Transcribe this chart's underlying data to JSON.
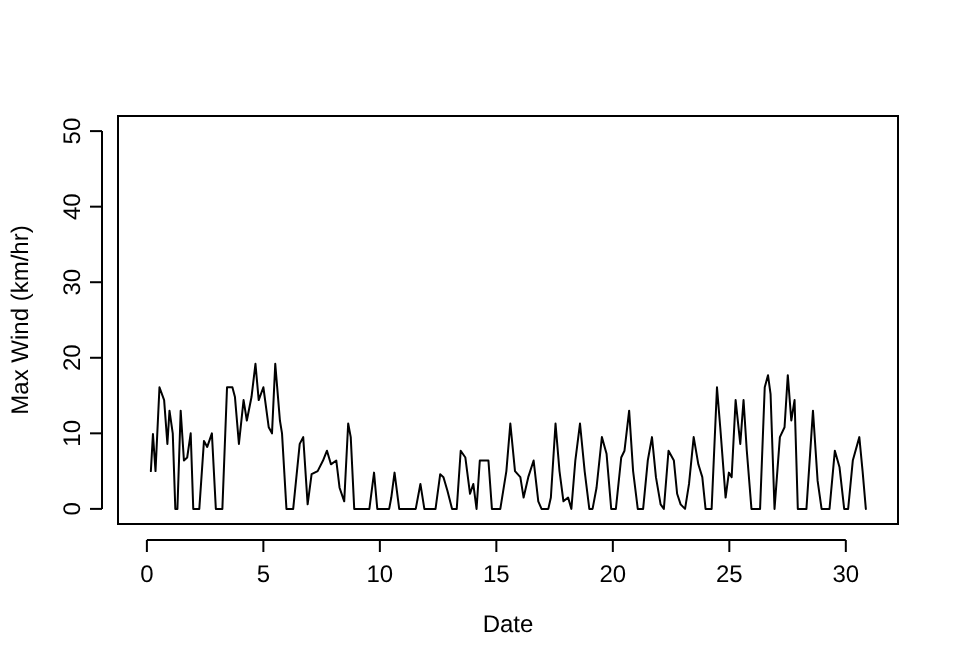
{
  "chart_data": {
    "type": "line",
    "xlabel": "Date",
    "ylabel": "Max Wind (km/hr)",
    "xlim": [
      -1.24,
      32.24
    ],
    "ylim": [
      -2,
      52
    ],
    "xticks": [
      0,
      5,
      10,
      15,
      20,
      25,
      30
    ],
    "yticks": [
      0,
      10,
      20,
      30,
      40,
      50
    ],
    "grid": false,
    "marker": "none",
    "line_style": "solid",
    "series": [
      {
        "color": "#000000",
        "x": [
          0.17,
          0.26,
          0.37,
          0.54,
          0.74,
          0.88,
          0.97,
          1.11,
          1.22,
          1.31,
          1.45,
          1.59,
          1.73,
          1.88,
          1.99,
          2.25,
          2.45,
          2.59,
          2.79,
          2.96,
          3.24,
          3.44,
          3.67,
          3.78,
          3.95,
          4.15,
          4.29,
          4.49,
          4.66,
          4.8,
          5.0,
          5.23,
          5.37,
          5.51,
          5.71,
          5.8,
          5.99,
          6.28,
          6.56,
          6.71,
          6.9,
          7.07,
          7.33,
          7.56,
          7.73,
          7.9,
          8.13,
          8.27,
          8.47,
          8.64,
          8.75,
          8.9,
          9.55,
          9.75,
          9.89,
          10.4,
          10.49,
          10.63,
          10.83,
          11.54,
          11.74,
          11.91,
          12.39,
          12.59,
          12.73,
          12.9,
          13.1,
          13.3,
          13.47,
          13.67,
          13.87,
          14.01,
          14.15,
          14.29,
          14.66,
          14.81,
          15.17,
          15.43,
          15.6,
          15.8,
          16.03,
          16.17,
          16.37,
          16.6,
          16.8,
          16.94,
          17.23,
          17.34,
          17.54,
          17.71,
          17.88,
          18.08,
          18.22,
          18.39,
          18.59,
          18.79,
          18.99,
          19.13,
          19.3,
          19.53,
          19.73,
          19.93,
          20.13,
          20.36,
          20.5,
          20.7,
          20.87,
          21.07,
          21.3,
          21.5,
          21.68,
          21.85,
          22.05,
          22.19,
          22.39,
          22.62,
          22.76,
          22.91,
          23.1,
          23.27,
          23.47,
          23.67,
          23.84,
          23.98,
          24.24,
          24.47,
          24.61,
          24.84,
          24.98,
          25.1,
          25.27,
          25.47,
          25.61,
          25.75,
          25.95,
          26.32,
          26.52,
          26.66,
          26.77,
          26.94,
          27.17,
          27.37,
          27.51,
          27.66,
          27.8,
          27.94,
          28.31,
          28.59,
          28.79,
          28.96,
          29.3,
          29.53,
          29.73,
          29.93,
          30.1,
          30.3,
          30.58,
          30.72,
          30.86
        ],
        "values": [
          5,
          9.9,
          5,
          16.1,
          14.4,
          8.6,
          13,
          10,
          0,
          0,
          13,
          6.4,
          6.8,
          10,
          0,
          0,
          9,
          8.2,
          10,
          0,
          0,
          16.1,
          16.1,
          14.8,
          8.6,
          14.4,
          11.7,
          14.8,
          19.2,
          14.4,
          16.1,
          10.8,
          10,
          19.2,
          11.7,
          10,
          0,
          0,
          8.6,
          9.5,
          0.6,
          4.6,
          5,
          6.4,
          7.7,
          5.9,
          6.4,
          2.8,
          1,
          11.3,
          9.5,
          0,
          0,
          4.8,
          0,
          0,
          1.5,
          4.8,
          0,
          0,
          3.3,
          0,
          0,
          4.6,
          4.2,
          2.4,
          0,
          0,
          7.7,
          6.8,
          2,
          3.3,
          0,
          6.4,
          6.4,
          0,
          0,
          5,
          11.3,
          5,
          4.2,
          1.5,
          4.2,
          6.4,
          1,
          0,
          0,
          1.5,
          11.3,
          5,
          1,
          1.5,
          0,
          6.4,
          11.3,
          5,
          0,
          0,
          2.8,
          9.5,
          7.3,
          0,
          0,
          6.8,
          7.7,
          13,
          5,
          0,
          0,
          6.4,
          9.5,
          4.2,
          0.6,
          0,
          7.7,
          6.4,
          2,
          0.6,
          0,
          3.3,
          9.5,
          5.9,
          4.2,
          0,
          0,
          16.1,
          10.8,
          1.5,
          4.8,
          4.2,
          14.4,
          8.6,
          14.4,
          7.7,
          0,
          0,
          16.1,
          17.7,
          15.2,
          0,
          9.5,
          10.8,
          17.7,
          11.7,
          14.4,
          0,
          0,
          13,
          3.7,
          0,
          0,
          7.7,
          5.5,
          0,
          0,
          6.4,
          9.5,
          5,
          0
        ]
      }
    ]
  }
}
